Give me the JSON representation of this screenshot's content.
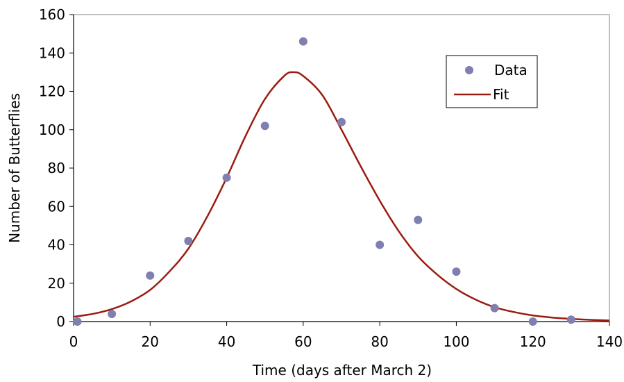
{
  "chart_data": {
    "type": "scatter",
    "title": "",
    "xlabel": "Time (days after March 2)",
    "ylabel": "Number of Butterflies",
    "xlim": [
      0,
      140
    ],
    "ylim": [
      0,
      160
    ],
    "xticks": [
      0,
      20,
      40,
      60,
      80,
      100,
      120,
      140
    ],
    "yticks": [
      0,
      20,
      40,
      60,
      80,
      100,
      120,
      140,
      160
    ],
    "grid": false,
    "legend_position": "top-right",
    "series": [
      {
        "name": "Data",
        "kind": "scatter",
        "color": "#7f7fb0",
        "x": [
          1,
          10,
          20,
          30,
          40,
          50,
          60,
          70,
          80,
          90,
          100,
          110,
          120,
          130
        ],
        "y": [
          0,
          4,
          24,
          42,
          75,
          102,
          146,
          104,
          40,
          53,
          26,
          7,
          0,
          1
        ]
      },
      {
        "name": "Fit",
        "kind": "line",
        "color": "#9b1c0f",
        "x": [
          0,
          5,
          10,
          15,
          20,
          25,
          30,
          35,
          40,
          45,
          50,
          55,
          57.5,
          60,
          65,
          70,
          75,
          80,
          85,
          90,
          95,
          100,
          105,
          110,
          115,
          120,
          125,
          130,
          135,
          140
        ],
        "y": [
          2.5,
          4,
          6.5,
          10.5,
          16.5,
          26,
          38,
          55,
          75,
          97,
          116,
          128,
          130,
          128,
          118,
          100,
          81,
          63,
          47,
          34,
          24.5,
          17,
          11.5,
          7.5,
          5,
          3.2,
          2.1,
          1.4,
          0.9,
          0.6
        ]
      }
    ]
  }
}
